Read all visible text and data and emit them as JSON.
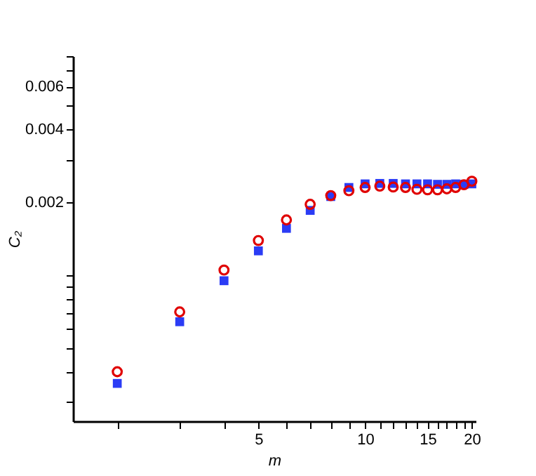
{
  "chart_data": {
    "type": "scatter",
    "xlabel": "m",
    "ylabel": "C₂",
    "log": "xy",
    "grid": false,
    "x": [
      2,
      3,
      4,
      5,
      6,
      7,
      8,
      9,
      10,
      11,
      12,
      13,
      14,
      15,
      16,
      17,
      18,
      19,
      20
    ],
    "series": [
      {
        "color": "#e00000",
        "marker": "circle",
        "values": [
          0.0004,
          0.000706,
          0.00105,
          0.00139,
          0.00169,
          0.00196,
          0.00213,
          0.00223,
          0.0023,
          0.00233,
          0.00231,
          0.0023,
          0.00226,
          0.00225,
          0.00225,
          0.00227,
          0.0023,
          0.00236,
          0.00244
        ]
      },
      {
        "color": "#2b3cf5",
        "marker": "square",
        "values": [
          0.000358,
          0.000643,
          0.000949,
          0.00126,
          0.00156,
          0.00185,
          0.00211,
          0.0023,
          0.00238,
          0.00239,
          0.00239,
          0.00238,
          0.00238,
          0.00238,
          0.00237,
          0.00237,
          0.00238,
          0.00237,
          0.00238
        ]
      }
    ],
    "xlim": [
      1.5,
      20.5
    ],
    "xticks": [
      {
        "value": 2,
        "label": null
      },
      {
        "value": 3,
        "label": null
      },
      {
        "value": 4,
        "label": null
      },
      5,
      {
        "value": 6,
        "label": null
      },
      {
        "value": 7,
        "label": null
      },
      {
        "value": 8,
        "label": null
      },
      {
        "value": 9,
        "label": null
      },
      10,
      {
        "value": 11,
        "label": null
      },
      {
        "value": 12,
        "label": null
      },
      {
        "value": 13,
        "label": null
      },
      {
        "value": 14,
        "label": null
      },
      15,
      {
        "value": 16,
        "label": null
      },
      {
        "value": 17,
        "label": null
      },
      {
        "value": 18,
        "label": null
      },
      {
        "value": 19,
        "label": null
      },
      20
    ],
    "ylim": [
      0.00025,
      0.008
    ],
    "yticks": [
      {
        "value": 0.0003,
        "label": null
      },
      {
        "value": 0.0004,
        "label": null
      },
      {
        "value": 0.0005,
        "label": null
      },
      {
        "value": 0.0006,
        "label": null
      },
      {
        "value": 0.0007,
        "label": null
      },
      {
        "value": 0.0008,
        "label": null
      },
      {
        "value": 0.0009,
        "label": null
      },
      {
        "value": 0.001,
        "label": null
      },
      0.002,
      {
        "value": 0.003,
        "label": null
      },
      0.004,
      {
        "value": 0.005,
        "label": null
      },
      0.006,
      {
        "value": 0.007,
        "label": null
      },
      {
        "value": 0.008,
        "label": null
      }
    ]
  }
}
